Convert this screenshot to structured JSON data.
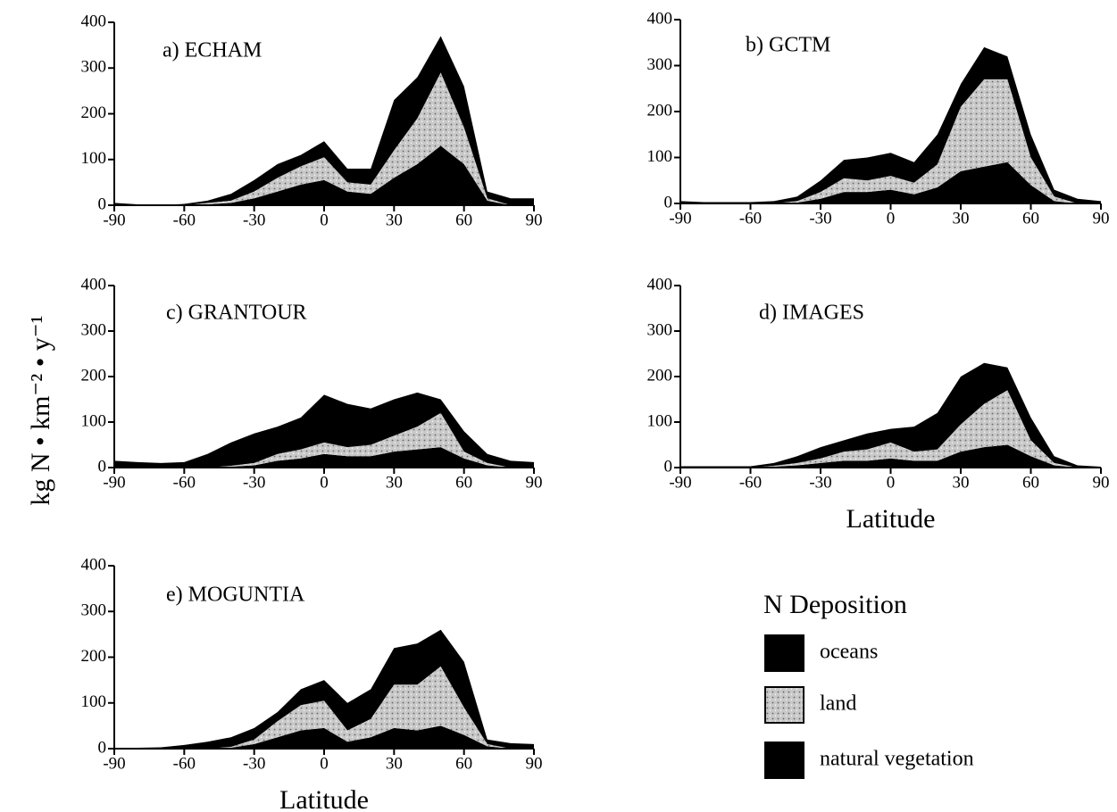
{
  "y_label": "kg N • km⁻² • y⁻¹",
  "legend": {
    "title": "N Deposition"
  },
  "chart_data": [
    {
      "type": "area",
      "stacked": true,
      "title": "a) ECHAM",
      "x": [
        -90,
        -80,
        -70,
        -60,
        -50,
        -40,
        -30,
        -20,
        -10,
        0,
        10,
        20,
        30,
        40,
        50,
        60,
        70,
        80,
        90
      ],
      "series": [
        {
          "name": "oceans",
          "color": "#000000",
          "values": [
            5,
            2,
            0,
            3,
            5,
            15,
            25,
            30,
            25,
            35,
            30,
            35,
            110,
            90,
            80,
            90,
            15,
            15,
            15
          ]
        },
        {
          "name": "land",
          "color": "#c8c8c8",
          "pattern": "stipple",
          "values": [
            0,
            0,
            0,
            0,
            3,
            5,
            15,
            30,
            40,
            50,
            20,
            20,
            60,
            100,
            160,
            80,
            5,
            0,
            0
          ]
        },
        {
          "name": "natural vegetation",
          "color": "#000000",
          "values": [
            0,
            0,
            0,
            0,
            2,
            5,
            15,
            30,
            45,
            55,
            30,
            25,
            60,
            90,
            130,
            90,
            10,
            0,
            0
          ]
        }
      ],
      "xlim": [
        -90,
        90
      ],
      "xticks": [
        -90,
        -60,
        -30,
        0,
        30,
        60,
        90
      ],
      "ylim": [
        0,
        400
      ],
      "yticks": [
        0,
        100,
        200,
        300,
        400
      ]
    },
    {
      "type": "area",
      "stacked": true,
      "title": "b) GCTM",
      "x": [
        -90,
        -80,
        -70,
        -60,
        -50,
        -40,
        -30,
        -20,
        -10,
        0,
        10,
        20,
        30,
        40,
        50,
        60,
        70,
        80,
        90
      ],
      "series": [
        {
          "name": "oceans",
          "color": "#000000",
          "values": [
            5,
            3,
            3,
            3,
            5,
            10,
            25,
            40,
            50,
            50,
            45,
            65,
            50,
            70,
            50,
            50,
            15,
            10,
            5
          ]
        },
        {
          "name": "land",
          "color": "#c8c8c8",
          "pattern": "stipple",
          "values": [
            0,
            0,
            0,
            0,
            0,
            3,
            15,
            30,
            25,
            30,
            25,
            50,
            140,
            190,
            180,
            60,
            10,
            0,
            0
          ]
        },
        {
          "name": "natural vegetation",
          "color": "#000000",
          "values": [
            0,
            0,
            0,
            0,
            0,
            2,
            10,
            25,
            25,
            30,
            20,
            35,
            70,
            80,
            90,
            40,
            5,
            0,
            0
          ]
        }
      ],
      "xlim": [
        -90,
        90
      ],
      "xticks": [
        -90,
        -60,
        -30,
        0,
        30,
        60,
        90
      ],
      "ylim": [
        0,
        400
      ],
      "yticks": [
        0,
        100,
        200,
        300,
        400
      ]
    },
    {
      "type": "area",
      "stacked": true,
      "title": "c) GRANTOUR",
      "x": [
        -90,
        -80,
        -70,
        -60,
        -50,
        -40,
        -30,
        -20,
        -10,
        0,
        10,
        20,
        30,
        40,
        50,
        60,
        70,
        80,
        90
      ],
      "series": [
        {
          "name": "oceans",
          "color": "#000000",
          "values": [
            15,
            12,
            10,
            12,
            30,
            51,
            65,
            60,
            70,
            105,
            95,
            80,
            80,
            75,
            30,
            45,
            20,
            15,
            12
          ]
        },
        {
          "name": "land",
          "color": "#c8c8c8",
          "pattern": "stipple",
          "values": [
            0,
            0,
            0,
            0,
            0,
            2,
            5,
            15,
            20,
            25,
            20,
            25,
            35,
            50,
            75,
            15,
            5,
            0,
            0
          ]
        },
        {
          "name": "natural vegetation",
          "color": "#000000",
          "values": [
            0,
            0,
            0,
            0,
            0,
            2,
            5,
            15,
            20,
            30,
            25,
            25,
            35,
            40,
            45,
            20,
            5,
            0,
            0
          ]
        }
      ],
      "xlim": [
        -90,
        90
      ],
      "xticks": [
        -90,
        -60,
        -30,
        0,
        30,
        60,
        90
      ],
      "ylim": [
        0,
        400
      ],
      "yticks": [
        0,
        100,
        200,
        300,
        400
      ]
    },
    {
      "type": "area",
      "stacked": true,
      "title": "d) IMAGES",
      "x_label": "Latitude",
      "x": [
        -90,
        -80,
        -70,
        -60,
        -50,
        -40,
        -30,
        -20,
        -10,
        0,
        10,
        20,
        30,
        40,
        50,
        60,
        70,
        80,
        90
      ],
      "series": [
        {
          "name": "oceans",
          "color": "#000000",
          "values": [
            3,
            3,
            3,
            3,
            6,
            15,
            25,
            25,
            35,
            30,
            55,
            80,
            105,
            90,
            50,
            50,
            15,
            5,
            2
          ]
        },
        {
          "name": "land",
          "color": "#c8c8c8",
          "pattern": "stipple",
          "values": [
            0,
            0,
            0,
            0,
            2,
            5,
            10,
            20,
            25,
            35,
            20,
            25,
            60,
            95,
            120,
            35,
            5,
            0,
            0
          ]
        },
        {
          "name": "natural vegetation",
          "color": "#000000",
          "values": [
            0,
            0,
            0,
            0,
            2,
            5,
            10,
            15,
            15,
            20,
            15,
            15,
            35,
            45,
            50,
            25,
            5,
            0,
            0
          ]
        }
      ],
      "xlim": [
        -90,
        90
      ],
      "xticks": [
        -90,
        -60,
        -30,
        0,
        30,
        60,
        90
      ],
      "ylim": [
        0,
        400
      ],
      "yticks": [
        0,
        100,
        200,
        300,
        400
      ]
    },
    {
      "type": "area",
      "stacked": true,
      "title": "e) MOGUNTIA",
      "x_label": "Latitude",
      "x": [
        -90,
        -80,
        -70,
        -60,
        -50,
        -40,
        -30,
        -20,
        -10,
        0,
        10,
        20,
        30,
        40,
        50,
        60,
        70,
        80,
        90
      ],
      "series": [
        {
          "name": "oceans",
          "color": "#000000",
          "values": [
            2,
            2,
            3,
            8,
            15,
            21,
            25,
            20,
            35,
            45,
            60,
            65,
            80,
            90,
            80,
            100,
            10,
            12,
            10
          ]
        },
        {
          "name": "land",
          "color": "#c8c8c8",
          "pattern": "stipple",
          "values": [
            0,
            0,
            0,
            0,
            0,
            2,
            10,
            35,
            55,
            60,
            25,
            40,
            95,
            100,
            130,
            60,
            5,
            0,
            0
          ]
        },
        {
          "name": "natural vegetation",
          "color": "#000000",
          "values": [
            0,
            0,
            0,
            0,
            0,
            2,
            10,
            25,
            40,
            45,
            15,
            25,
            45,
            40,
            50,
            30,
            5,
            0,
            0
          ]
        }
      ],
      "xlim": [
        -90,
        90
      ],
      "xticks": [
        -90,
        -60,
        -30,
        0,
        30,
        60,
        90
      ],
      "ylim": [
        0,
        400
      ],
      "yticks": [
        0,
        100,
        200,
        300,
        400
      ]
    }
  ]
}
